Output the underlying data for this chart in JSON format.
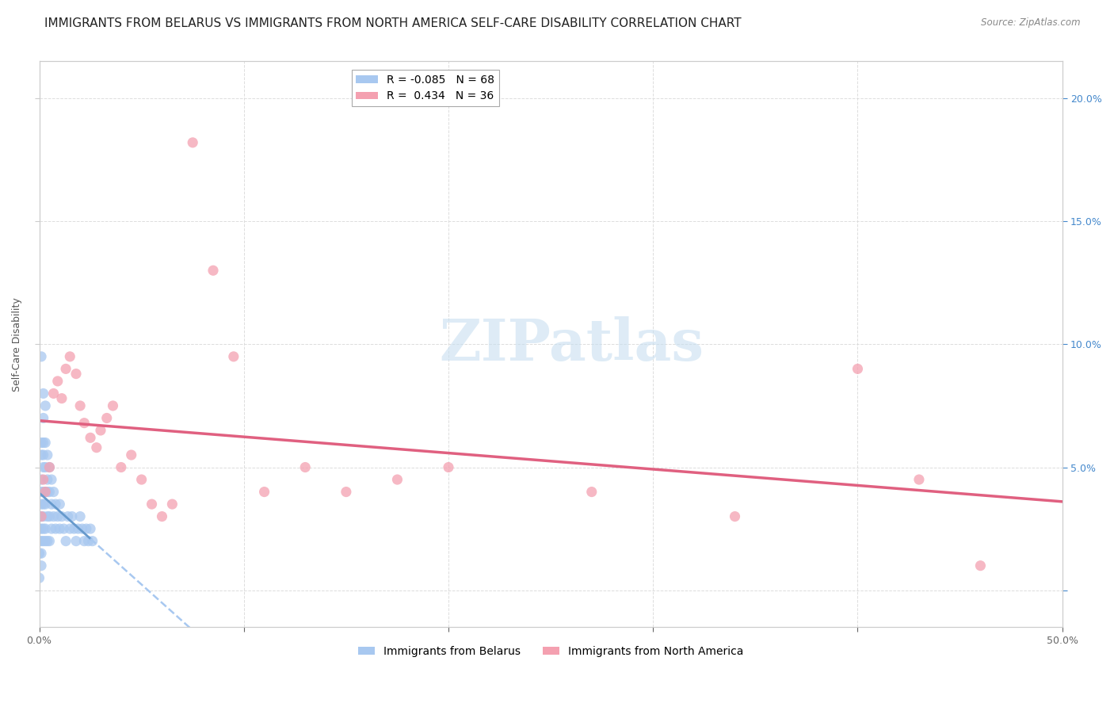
{
  "title": "IMMIGRANTS FROM BELARUS VS IMMIGRANTS FROM NORTH AMERICA SELF-CARE DISABILITY CORRELATION CHART",
  "source": "Source: ZipAtlas.com",
  "ylabel": "Self-Care Disability",
  "xlim": [
    0,
    0.5
  ],
  "ylim": [
    -0.015,
    0.215
  ],
  "xticks": [
    0.0,
    0.1,
    0.2,
    0.3,
    0.4,
    0.5
  ],
  "xticklabels": [
    "0.0%",
    "",
    "",
    "",
    "",
    "50.0%"
  ],
  "yticks": [
    0.0,
    0.05,
    0.1,
    0.15,
    0.2
  ],
  "yticklabels_right": [
    "",
    "5.0%",
    "10.0%",
    "15.0%",
    "20.0%"
  ],
  "belarus_color": "#a8c8f0",
  "belarus_line_color": "#6699cc",
  "north_america_color": "#f4a0b0",
  "north_america_line_color": "#e06080",
  "belarus_R": -0.085,
  "belarus_N": 68,
  "north_america_R": 0.434,
  "north_america_N": 36,
  "watermark_text": "ZIPatlas",
  "watermark_color": "#c8dff0",
  "belarus_x": [
    0.0,
    0.0,
    0.0,
    0.0,
    0.001,
    0.001,
    0.001,
    0.001,
    0.001,
    0.001,
    0.001,
    0.001,
    0.001,
    0.001,
    0.001,
    0.002,
    0.002,
    0.002,
    0.002,
    0.002,
    0.002,
    0.002,
    0.002,
    0.002,
    0.002,
    0.003,
    0.003,
    0.003,
    0.003,
    0.003,
    0.003,
    0.003,
    0.004,
    0.004,
    0.004,
    0.004,
    0.004,
    0.005,
    0.005,
    0.005,
    0.005,
    0.006,
    0.006,
    0.006,
    0.007,
    0.007,
    0.008,
    0.008,
    0.009,
    0.01,
    0.01,
    0.011,
    0.012,
    0.013,
    0.014,
    0.015,
    0.016,
    0.017,
    0.018,
    0.019,
    0.02,
    0.021,
    0.022,
    0.023,
    0.024,
    0.025,
    0.026,
    0.0
  ],
  "belarus_y": [
    0.03,
    0.025,
    0.02,
    0.015,
    0.095,
    0.06,
    0.055,
    0.045,
    0.04,
    0.035,
    0.03,
    0.025,
    0.02,
    0.015,
    0.01,
    0.08,
    0.07,
    0.06,
    0.055,
    0.05,
    0.04,
    0.035,
    0.03,
    0.025,
    0.02,
    0.075,
    0.06,
    0.05,
    0.04,
    0.035,
    0.025,
    0.02,
    0.055,
    0.045,
    0.04,
    0.03,
    0.02,
    0.05,
    0.04,
    0.03,
    0.02,
    0.045,
    0.035,
    0.025,
    0.04,
    0.03,
    0.035,
    0.025,
    0.03,
    0.035,
    0.025,
    0.03,
    0.025,
    0.02,
    0.03,
    0.025,
    0.03,
    0.025,
    0.02,
    0.025,
    0.03,
    0.025,
    0.02,
    0.025,
    0.02,
    0.025,
    0.02,
    0.005
  ],
  "north_america_x": [
    0.001,
    0.002,
    0.003,
    0.005,
    0.007,
    0.009,
    0.011,
    0.013,
    0.015,
    0.018,
    0.02,
    0.022,
    0.025,
    0.028,
    0.03,
    0.033,
    0.036,
    0.04,
    0.045,
    0.05,
    0.055,
    0.06,
    0.065,
    0.075,
    0.085,
    0.095,
    0.11,
    0.13,
    0.15,
    0.175,
    0.2,
    0.27,
    0.34,
    0.4,
    0.43,
    0.46
  ],
  "north_america_y": [
    0.03,
    0.045,
    0.04,
    0.05,
    0.08,
    0.085,
    0.078,
    0.09,
    0.095,
    0.088,
    0.075,
    0.068,
    0.062,
    0.058,
    0.065,
    0.07,
    0.075,
    0.05,
    0.055,
    0.045,
    0.035,
    0.03,
    0.035,
    0.182,
    0.13,
    0.095,
    0.04,
    0.05,
    0.04,
    0.045,
    0.05,
    0.04,
    0.03,
    0.09,
    0.045,
    0.01
  ],
  "background_color": "#ffffff",
  "grid_color": "#dddddd",
  "title_fontsize": 11,
  "axis_label_fontsize": 9,
  "tick_fontsize": 9,
  "legend_fontsize": 10,
  "scatter_size": 90,
  "scatter_alpha": 0.75
}
